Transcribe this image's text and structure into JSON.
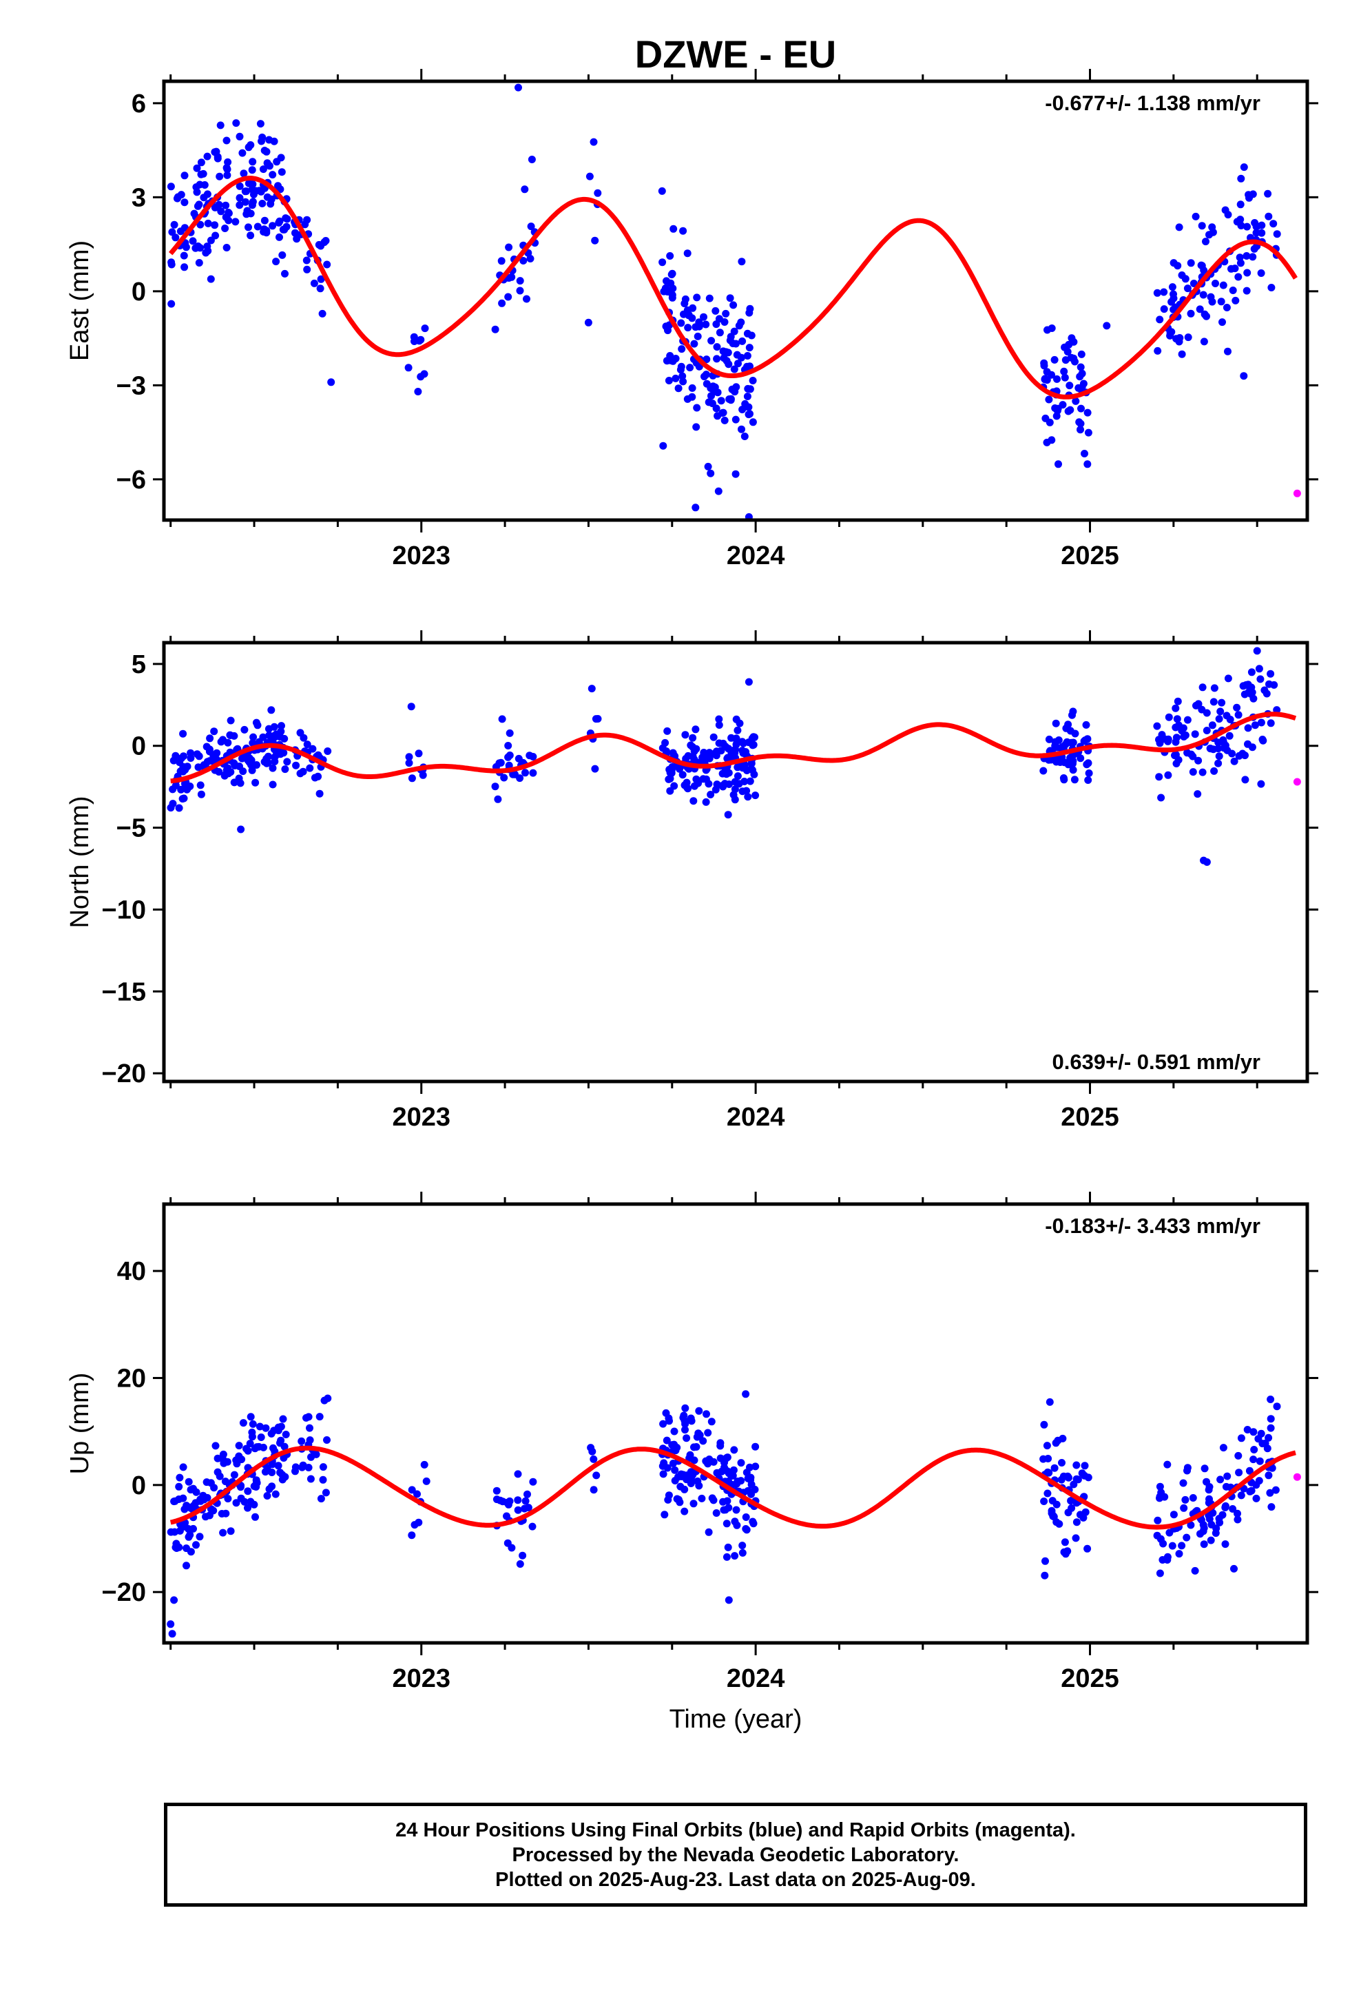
{
  "chart_data": {
    "title": "DZWE - EU",
    "xlabel": "Time (year)",
    "xlim": [
      2022.23,
      2025.65
    ],
    "x_ticks": [
      2023,
      2024,
      2025
    ],
    "colors": {
      "final_orbits": "#0000ff",
      "rapid_orbits": "#ff00ff",
      "model": "#ff0000",
      "axes": "#000000"
    },
    "grid": false,
    "panels": [
      {
        "type": "scatter",
        "name": "east",
        "ylabel": "East (mm)",
        "ylim": [
          -7.3,
          6.7
        ],
        "y_ticks": [
          6,
          3,
          0,
          -3,
          -6
        ],
        "y_tick_labels": [
          "6",
          "3",
          "0",
          "−3",
          "−6"
        ],
        "rate_label": "-0.677+/- 1.138 mm/yr",
        "rate_position": "top-right",
        "model": {
          "offset": -0.25,
          "rate": -0.677,
          "amp1": 2.6,
          "phase1": 4.93,
          "amp2": 0.35,
          "phase2": 1.0
        },
        "clusters": [
          {
            "x0": 2022.25,
            "x1": 2022.6,
            "scatter": 1.0,
            "n": 150
          },
          {
            "x0": 2022.62,
            "x1": 2022.72,
            "scatter": 0.6,
            "n": 22
          },
          {
            "x0": 2022.96,
            "x1": 2023.02,
            "scatter": 0.8,
            "n": 8
          },
          {
            "x0": 2023.22,
            "x1": 2023.34,
            "scatter": 0.9,
            "n": 25
          },
          {
            "x0": 2023.5,
            "x1": 2023.53,
            "scatter": 1.0,
            "n": 5
          },
          {
            "x0": 2023.72,
            "x1": 2024.0,
            "scatter": 1.3,
            "n": 150
          },
          {
            "x0": 2024.86,
            "x1": 2025.0,
            "scatter": 0.9,
            "n": 60
          },
          {
            "x0": 2025.2,
            "x1": 2025.56,
            "scatter": 1.1,
            "n": 110
          }
        ],
        "extra_points": [
          [
            2023.29,
            6.5
          ],
          [
            2023.98,
            -7.2
          ],
          [
            2023.82,
            -6.9
          ],
          [
            2025.46,
            -2.7
          ],
          [
            2023.5,
            -1.0
          ],
          [
            2022.73,
            -2.9
          ],
          [
            2022.99,
            -3.2
          ],
          [
            2025.05,
            -1.1
          ]
        ],
        "rapid": [
          [
            2025.62,
            -6.45
          ]
        ]
      },
      {
        "type": "scatter",
        "name": "north",
        "ylabel": "North (mm)",
        "ylim": [
          -20.5,
          6.3
        ],
        "y_ticks": [
          5,
          0,
          -5,
          -10,
          -15,
          -20
        ],
        "y_tick_labels": [
          "5",
          "0",
          "−5",
          "−10",
          "−15",
          "−20"
        ],
        "rate_label": "0.639+/- 0.591 mm/yr",
        "rate_position": "bottom-right",
        "model": {
          "offset": -0.4,
          "rate": 0.639,
          "amp1": 0.8,
          "phase1": 4.5,
          "amp2": 0.55,
          "phase2": 1.0
        },
        "clusters": [
          {
            "x0": 2022.25,
            "x1": 2022.6,
            "scatter": 0.9,
            "n": 150
          },
          {
            "x0": 2022.62,
            "x1": 2022.72,
            "scatter": 0.8,
            "n": 22
          },
          {
            "x0": 2022.96,
            "x1": 2023.02,
            "scatter": 0.8,
            "n": 8
          },
          {
            "x0": 2023.22,
            "x1": 2023.34,
            "scatter": 1.0,
            "n": 25
          },
          {
            "x0": 2023.5,
            "x1": 2023.53,
            "scatter": 1.2,
            "n": 5
          },
          {
            "x0": 2023.72,
            "x1": 2024.0,
            "scatter": 1.1,
            "n": 150
          },
          {
            "x0": 2024.86,
            "x1": 2025.0,
            "scatter": 1.0,
            "n": 60
          },
          {
            "x0": 2025.2,
            "x1": 2025.56,
            "scatter": 1.6,
            "n": 110
          }
        ],
        "extra_points": [
          [
            2025.34,
            -7.0
          ],
          [
            2025.35,
            -7.1
          ],
          [
            2025.5,
            5.8
          ],
          [
            2025.54,
            4.4
          ],
          [
            2022.46,
            -5.1
          ],
          [
            2023.51,
            3.5
          ],
          [
            2023.98,
            3.9
          ],
          [
            2022.97,
            2.4
          ]
        ],
        "rapid": [
          [
            2025.62,
            -2.2
          ]
        ]
      },
      {
        "type": "scatter",
        "name": "up",
        "ylabel": "Up (mm)",
        "ylim": [
          -29.5,
          52.5
        ],
        "y_ticks": [
          40,
          20,
          0,
          -20
        ],
        "y_tick_labels": [
          "40",
          "20",
          "0",
          "−20"
        ],
        "rate_label": "-0.183+/- 3.433 mm/yr",
        "rate_position": "top-right",
        "model": {
          "offset": -0.7,
          "rate": -0.183,
          "amp1": 7.1,
          "phase1": 3.6,
          "amp2": 0.5,
          "phase2": 0.5
        },
        "clusters": [
          {
            "x0": 2022.25,
            "x1": 2022.6,
            "scatter": 4.5,
            "n": 150
          },
          {
            "x0": 2022.62,
            "x1": 2022.72,
            "scatter": 3.5,
            "n": 22
          },
          {
            "x0": 2022.96,
            "x1": 2023.02,
            "scatter": 3.5,
            "n": 8
          },
          {
            "x0": 2023.22,
            "x1": 2023.34,
            "scatter": 4.5,
            "n": 25
          },
          {
            "x0": 2023.5,
            "x1": 2023.53,
            "scatter": 3.0,
            "n": 5
          },
          {
            "x0": 2023.72,
            "x1": 2024.0,
            "scatter": 5.0,
            "n": 150
          },
          {
            "x0": 2024.86,
            "x1": 2025.0,
            "scatter": 5.5,
            "n": 60
          },
          {
            "x0": 2025.2,
            "x1": 2025.56,
            "scatter": 5.0,
            "n": 110
          }
        ],
        "extra_points": [
          [
            2022.25,
            -26.0
          ],
          [
            2022.255,
            -27.8
          ],
          [
            2022.26,
            -21.5
          ],
          [
            2023.92,
            -21.5
          ],
          [
            2022.71,
            15.8
          ],
          [
            2022.72,
            16.2
          ],
          [
            2023.97,
            17.0
          ],
          [
            2025.54,
            16.0
          ],
          [
            2025.21,
            -16.5
          ],
          [
            2024.88,
            15.5
          ]
        ],
        "rapid": [
          [
            2025.62,
            1.5
          ]
        ]
      }
    ]
  },
  "footer": {
    "line1": "24 Hour Positions Using Final Orbits (blue) and Rapid Orbits (magenta).",
    "line2": "Processed by the Nevada Geodetic Laboratory.",
    "line3": "Plotted on 2025-Aug-23. Last data on 2025-Aug-09."
  }
}
